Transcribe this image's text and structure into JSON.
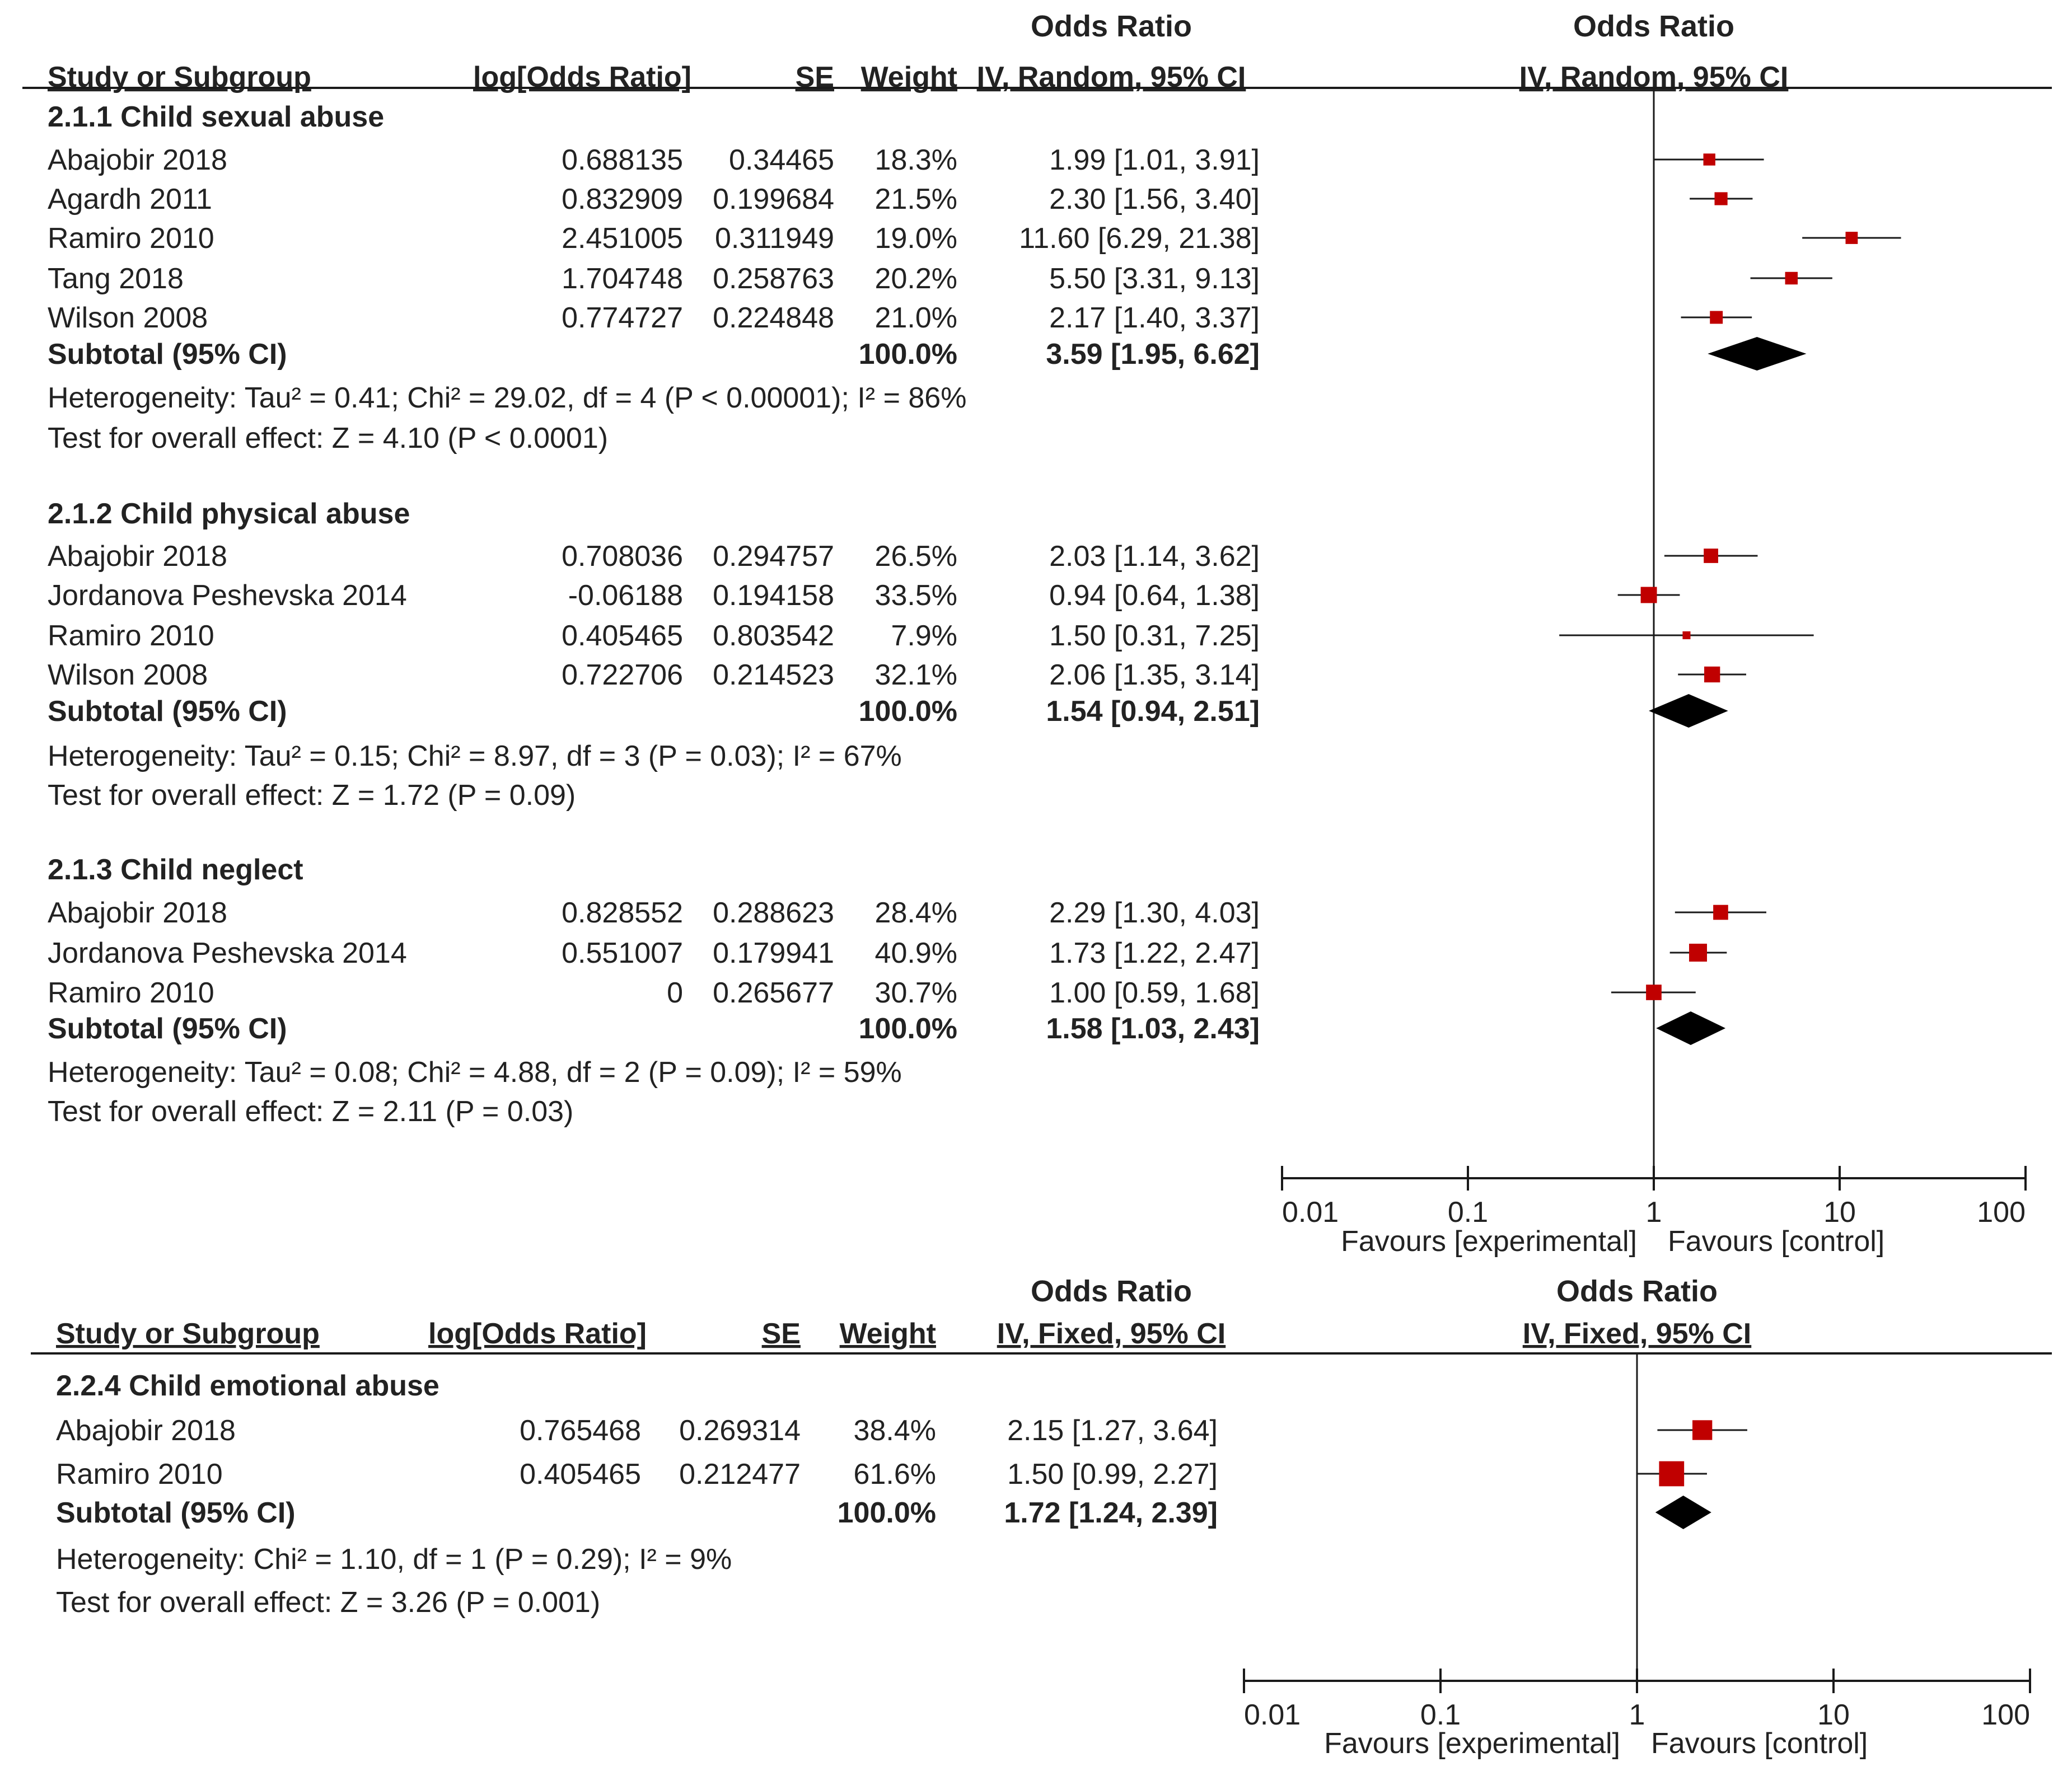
{
  "chart_data": [
    {
      "type": "forest",
      "header": {
        "col_study": "Study or Subgroup",
        "col_logor": "log[Odds Ratio]",
        "col_se": "SE",
        "col_weight": "Weight",
        "col_or_title": "Odds Ratio",
        "col_or_method": "IV, Random, 95% CI",
        "plot_title": "Odds Ratio",
        "plot_method": "IV, Random, 95% CI"
      },
      "axis": {
        "scale": "log",
        "ticks": [
          0.01,
          0.1,
          1,
          10,
          100
        ],
        "tick_labels": [
          "0.01",
          "0.1",
          "1",
          "10",
          "100"
        ],
        "favours_left": "Favours [experimental]",
        "favours_right": "Favours [control]"
      },
      "subgroups": [
        {
          "title": "2.1.1 Child sexual abuse",
          "studies": [
            {
              "name": "Abajobir 2018",
              "logor": "0.688135",
              "se": "0.34465",
              "weight": "18.3%",
              "ci_text": "1.99 [1.01, 3.91]",
              "or": 1.99,
              "lo": 1.01,
              "hi": 3.91,
              "w": 18.3
            },
            {
              "name": "Agardh 2011",
              "logor": "0.832909",
              "se": "0.199684",
              "weight": "21.5%",
              "ci_text": "2.30 [1.56, 3.40]",
              "or": 2.3,
              "lo": 1.56,
              "hi": 3.4,
              "w": 21.5
            },
            {
              "name": "Ramiro 2010",
              "logor": "2.451005",
              "se": "0.311949",
              "weight": "19.0%",
              "ci_text": "11.60 [6.29, 21.38]",
              "or": 11.6,
              "lo": 6.29,
              "hi": 21.38,
              "w": 19.0
            },
            {
              "name": "Tang 2018",
              "logor": "1.704748",
              "se": "0.258763",
              "weight": "20.2%",
              "ci_text": "5.50 [3.31, 9.13]",
              "or": 5.5,
              "lo": 3.31,
              "hi": 9.13,
              "w": 20.2
            },
            {
              "name": "Wilson 2008",
              "logor": "0.774727",
              "se": "0.224848",
              "weight": "21.0%",
              "ci_text": "2.17 [1.40, 3.37]",
              "or": 2.17,
              "lo": 1.4,
              "hi": 3.37,
              "w": 21.0
            }
          ],
          "subtotal": {
            "label": "Subtotal (95% CI)",
            "weight": "100.0%",
            "ci_text": "3.59 [1.95, 6.62]",
            "or": 3.59,
            "lo": 1.95,
            "hi": 6.62
          },
          "heterogeneity": "Heterogeneity: Tau² = 0.41; Chi² = 29.02, df = 4 (P < 0.00001); I² = 86%",
          "overall": "Test for overall effect: Z = 4.10 (P < 0.0001)"
        },
        {
          "title": "2.1.2 Child physical abuse",
          "studies": [
            {
              "name": "Abajobir 2018",
              "logor": "0.708036",
              "se": "0.294757",
              "weight": "26.5%",
              "ci_text": "2.03 [1.14, 3.62]",
              "or": 2.03,
              "lo": 1.14,
              "hi": 3.62,
              "w": 26.5
            },
            {
              "name": "Jordanova Peshevska 2014",
              "logor": "-0.06188",
              "se": "0.194158",
              "weight": "33.5%",
              "ci_text": "0.94 [0.64, 1.38]",
              "or": 0.94,
              "lo": 0.64,
              "hi": 1.38,
              "w": 33.5
            },
            {
              "name": "Ramiro 2010",
              "logor": "0.405465",
              "se": "0.803542",
              "weight": "7.9%",
              "ci_text": "1.50 [0.31, 7.25]",
              "or": 1.5,
              "lo": 0.31,
              "hi": 7.25,
              "w": 7.9
            },
            {
              "name": "Wilson 2008",
              "logor": "0.722706",
              "se": "0.214523",
              "weight": "32.1%",
              "ci_text": "2.06 [1.35, 3.14]",
              "or": 2.06,
              "lo": 1.35,
              "hi": 3.14,
              "w": 32.1
            }
          ],
          "subtotal": {
            "label": "Subtotal (95% CI)",
            "weight": "100.0%",
            "ci_text": "1.54 [0.94, 2.51]",
            "or": 1.54,
            "lo": 0.94,
            "hi": 2.51
          },
          "heterogeneity": "Heterogeneity: Tau² = 0.15; Chi² = 8.97, df = 3 (P = 0.03); I² = 67%",
          "overall": "Test for overall effect: Z = 1.72 (P = 0.09)"
        },
        {
          "title": "2.1.3 Child neglect",
          "studies": [
            {
              "name": "Abajobir 2018",
              "logor": "0.828552",
              "se": "0.288623",
              "weight": "28.4%",
              "ci_text": "2.29 [1.30, 4.03]",
              "or": 2.29,
              "lo": 1.3,
              "hi": 4.03,
              "w": 28.4
            },
            {
              "name": "Jordanova Peshevska 2014",
              "logor": "0.551007",
              "se": "0.179941",
              "weight": "40.9%",
              "ci_text": "1.73 [1.22, 2.47]",
              "or": 1.73,
              "lo": 1.22,
              "hi": 2.47,
              "w": 40.9
            },
            {
              "name": "Ramiro 2010",
              "logor": "0",
              "se": "0.265677",
              "weight": "30.7%",
              "ci_text": "1.00 [0.59, 1.68]",
              "or": 1.0,
              "lo": 0.59,
              "hi": 1.68,
              "w": 30.7
            }
          ],
          "subtotal": {
            "label": "Subtotal (95% CI)",
            "weight": "100.0%",
            "ci_text": "1.58 [1.03, 2.43]",
            "or": 1.58,
            "lo": 1.03,
            "hi": 2.43
          },
          "heterogeneity": "Heterogeneity: Tau² = 0.08; Chi² = 4.88, df = 2 (P = 0.09); I² = 59%",
          "overall": "Test for overall effect: Z = 2.11 (P = 0.03)"
        }
      ]
    },
    {
      "type": "forest",
      "header": {
        "col_study": "Study or Subgroup",
        "col_logor": "log[Odds Ratio]",
        "col_se": "SE",
        "col_weight": "Weight",
        "col_or_title": "Odds Ratio",
        "col_or_method": "IV, Fixed, 95% CI",
        "plot_title": "Odds Ratio",
        "plot_method": "IV, Fixed, 95% CI"
      },
      "axis": {
        "scale": "log",
        "ticks": [
          0.01,
          0.1,
          1,
          10,
          100
        ],
        "tick_labels": [
          "0.01",
          "0.1",
          "1",
          "10",
          "100"
        ],
        "favours_left": "Favours [experimental]",
        "favours_right": "Favours [control]"
      },
      "subgroups": [
        {
          "title": "2.2.4 Child emotional abuse",
          "studies": [
            {
              "name": "Abajobir 2018",
              "logor": "0.765468",
              "se": "0.269314",
              "weight": "38.4%",
              "ci_text": "2.15 [1.27, 3.64]",
              "or": 2.15,
              "lo": 1.27,
              "hi": 3.64,
              "w": 38.4
            },
            {
              "name": "Ramiro 2010",
              "logor": "0.405465",
              "se": "0.212477",
              "weight": "61.6%",
              "ci_text": "1.50 [0.99, 2.27]",
              "or": 1.5,
              "lo": 0.99,
              "hi": 2.27,
              "w": 61.6
            }
          ],
          "subtotal": {
            "label": "Subtotal (95% CI)",
            "weight": "100.0%",
            "ci_text": "1.72 [1.24, 2.39]",
            "or": 1.72,
            "lo": 1.24,
            "hi": 2.39
          },
          "heterogeneity": "Heterogeneity: Chi² = 1.10, df = 1 (P = 0.29); I² = 9%",
          "overall": "Test for overall effect: Z = 3.26 (P = 0.001)"
        }
      ]
    }
  ],
  "colors": {
    "marker": "#c00000",
    "line": "#1a1a1a",
    "text": "#222222"
  }
}
